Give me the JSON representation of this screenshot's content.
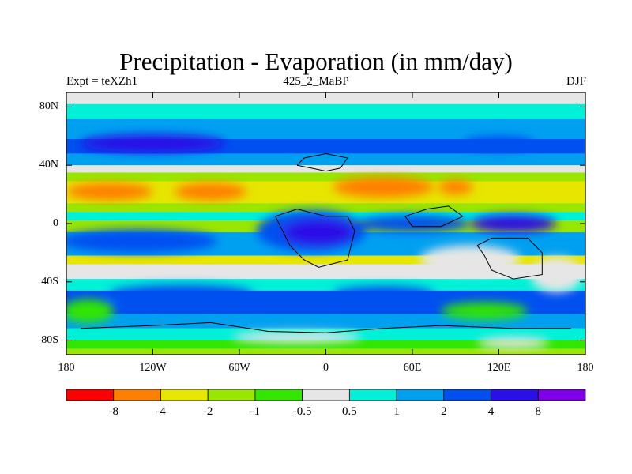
{
  "figure": {
    "title": "Precipitation - Evaporation (in mm/day)",
    "subtitle_left": "Expt = teXZh1",
    "subtitle_center": "425_2_MaBP",
    "subtitle_right": "DJF"
  },
  "axes": {
    "y_ticks": [
      {
        "lat": 80,
        "label": "80N"
      },
      {
        "lat": 40,
        "label": "40N"
      },
      {
        "lat": 0,
        "label": "0"
      },
      {
        "lat": -40,
        "label": "40S"
      },
      {
        "lat": -80,
        "label": "80S"
      }
    ],
    "x_ticks": [
      {
        "lon": -180,
        "label": "180"
      },
      {
        "lon": -120,
        "label": "120W"
      },
      {
        "lon": -60,
        "label": "60W"
      },
      {
        "lon": 0,
        "label": "0"
      },
      {
        "lon": 60,
        "label": "60E"
      },
      {
        "lon": 120,
        "label": "120E"
      },
      {
        "lon": 180,
        "label": "180"
      }
    ]
  },
  "colorbar": {
    "colors": [
      "#ff0000",
      "#ff7f00",
      "#e6e600",
      "#99e600",
      "#33e600",
      "#e6e6e6",
      "#00f0d8",
      "#00a0f0",
      "#0050f0",
      "#2a10e6",
      "#7f00e6"
    ],
    "labels": [
      "-8",
      "-4",
      "-2",
      "-1",
      "-0.5",
      "0.5",
      "1",
      "2",
      "4",
      "8"
    ]
  },
  "map_data": {
    "missing_color": "#e6e6e6",
    "bands": [
      {
        "lat_top": 90,
        "lat_bot": 82,
        "color": "#e6e6e6"
      },
      {
        "lat_top": 82,
        "lat_bot": 72,
        "color": "#00f0d8"
      },
      {
        "lat_top": 72,
        "lat_bot": 58,
        "color": "#00a0f0"
      },
      {
        "lat_top": 58,
        "lat_bot": 48,
        "color": "#0050f0"
      },
      {
        "lat_top": 48,
        "lat_bot": 40,
        "color": "#00a0f0"
      },
      {
        "lat_top": 40,
        "lat_bot": 35,
        "color": "#e6e6e6"
      },
      {
        "lat_top": 35,
        "lat_bot": 29,
        "color": "#99e600"
      },
      {
        "lat_top": 29,
        "lat_bot": 14,
        "color": "#e6e600"
      },
      {
        "lat_top": 14,
        "lat_bot": 8,
        "color": "#99e600"
      },
      {
        "lat_top": 8,
        "lat_bot": 2,
        "color": "#00f0d8"
      },
      {
        "lat_top": 2,
        "lat_bot": -6,
        "color": "#99e600"
      },
      {
        "lat_top": -6,
        "lat_bot": -22,
        "color": "#00a0f0"
      },
      {
        "lat_top": -22,
        "lat_bot": -28,
        "color": "#e6e600"
      },
      {
        "lat_top": -28,
        "lat_bot": -38,
        "color": "#e6e6e6"
      },
      {
        "lat_top": -38,
        "lat_bot": -46,
        "color": "#00f0d8"
      },
      {
        "lat_top": -46,
        "lat_bot": -62,
        "color": "#0050f0"
      },
      {
        "lat_top": -62,
        "lat_bot": -72,
        "color": "#00a0f0"
      },
      {
        "lat_top": -72,
        "lat_bot": -80,
        "color": "#00f0d8"
      },
      {
        "lat_top": -80,
        "lat_bot": -86,
        "color": "#33e600"
      },
      {
        "lat_top": -86,
        "lat_bot": -90,
        "color": "#99e600"
      }
    ],
    "blobs": [
      {
        "lon": -150,
        "lat": 22,
        "rlon": 30,
        "rlat": 6,
        "color": "#ff7f00"
      },
      {
        "lon": -80,
        "lat": 22,
        "rlon": 25,
        "rlat": 6,
        "color": "#ff7f00"
      },
      {
        "lon": 40,
        "lat": 25,
        "rlon": 35,
        "rlat": 7,
        "color": "#ff7f00"
      },
      {
        "lon": 90,
        "lat": 25,
        "rlon": 12,
        "rlat": 5,
        "color": "#ff7f00"
      },
      {
        "lon": -120,
        "lat": 55,
        "rlon": 50,
        "rlat": 6,
        "color": "#2a10e6"
      },
      {
        "lon": 120,
        "lat": 55,
        "rlon": 25,
        "rlat": 5,
        "color": "#0050f0"
      },
      {
        "lon": -130,
        "lat": -12,
        "rlon": 55,
        "rlat": 8,
        "color": "#0050f0"
      },
      {
        "lon": -10,
        "lat": -5,
        "rlon": 38,
        "rlat": 14,
        "color": "#0050f0"
      },
      {
        "lon": -5,
        "lat": -6,
        "rlon": 25,
        "rlat": 9,
        "color": "#2a10e6"
      },
      {
        "lon": 60,
        "lat": 0,
        "rlon": 40,
        "rlat": 6,
        "color": "#0050f0"
      },
      {
        "lon": 130,
        "lat": 0,
        "rlon": 30,
        "rlat": 6,
        "color": "#2a10e6"
      },
      {
        "lon": -100,
        "lat": -48,
        "rlon": 50,
        "rlat": 6,
        "color": "#0050f0"
      },
      {
        "lon": 40,
        "lat": -48,
        "rlon": 35,
        "rlat": 5,
        "color": "#0050f0"
      },
      {
        "lon": 100,
        "lat": -25,
        "rlon": 35,
        "rlat": 10,
        "color": "#e6e6e6"
      },
      {
        "lon": 160,
        "lat": -35,
        "rlon": 18,
        "rlat": 12,
        "color": "#e6e6e6"
      },
      {
        "lon": -165,
        "lat": -60,
        "rlon": 18,
        "rlat": 8,
        "color": "#33e600"
      },
      {
        "lon": 110,
        "lat": -60,
        "rlon": 30,
        "rlat": 6,
        "color": "#33e600"
      },
      {
        "lon": -20,
        "lat": -78,
        "rlon": 45,
        "rlat": 4,
        "color": "#e6e6e6"
      },
      {
        "lon": 130,
        "lat": -82,
        "rlon": 25,
        "rlat": 4,
        "color": "#e6e6e6"
      }
    ],
    "coastlines": [
      [
        [
          -30,
          -5
        ],
        [
          -35,
          5
        ],
        [
          -20,
          10
        ],
        [
          0,
          5
        ],
        [
          15,
          5
        ],
        [
          20,
          -5
        ],
        [
          15,
          -25
        ],
        [
          -5,
          -30
        ],
        [
          -15,
          -25
        ],
        [
          -25,
          -15
        ],
        [
          -30,
          -5
        ]
      ],
      [
        [
          -20,
          40
        ],
        [
          -15,
          45
        ],
        [
          0,
          48
        ],
        [
          15,
          45
        ],
        [
          10,
          38
        ],
        [
          0,
          36
        ],
        [
          -10,
          38
        ],
        [
          -20,
          40
        ]
      ],
      [
        [
          105,
          -15
        ],
        [
          115,
          -10
        ],
        [
          140,
          -10
        ],
        [
          150,
          -20
        ],
        [
          150,
          -35
        ],
        [
          130,
          -38
        ],
        [
          115,
          -32
        ],
        [
          110,
          -22
        ],
        [
          105,
          -15
        ]
      ],
      [
        [
          -170,
          -72
        ],
        [
          -120,
          -70
        ],
        [
          -80,
          -68
        ],
        [
          -40,
          -74
        ],
        [
          0,
          -75
        ],
        [
          40,
          -72
        ],
        [
          80,
          -70
        ],
        [
          130,
          -72
        ],
        [
          170,
          -72
        ]
      ],
      [
        [
          55,
          5
        ],
        [
          70,
          10
        ],
        [
          85,
          12
        ],
        [
          95,
          5
        ],
        [
          80,
          -2
        ],
        [
          60,
          -2
        ],
        [
          55,
          5
        ]
      ]
    ]
  }
}
